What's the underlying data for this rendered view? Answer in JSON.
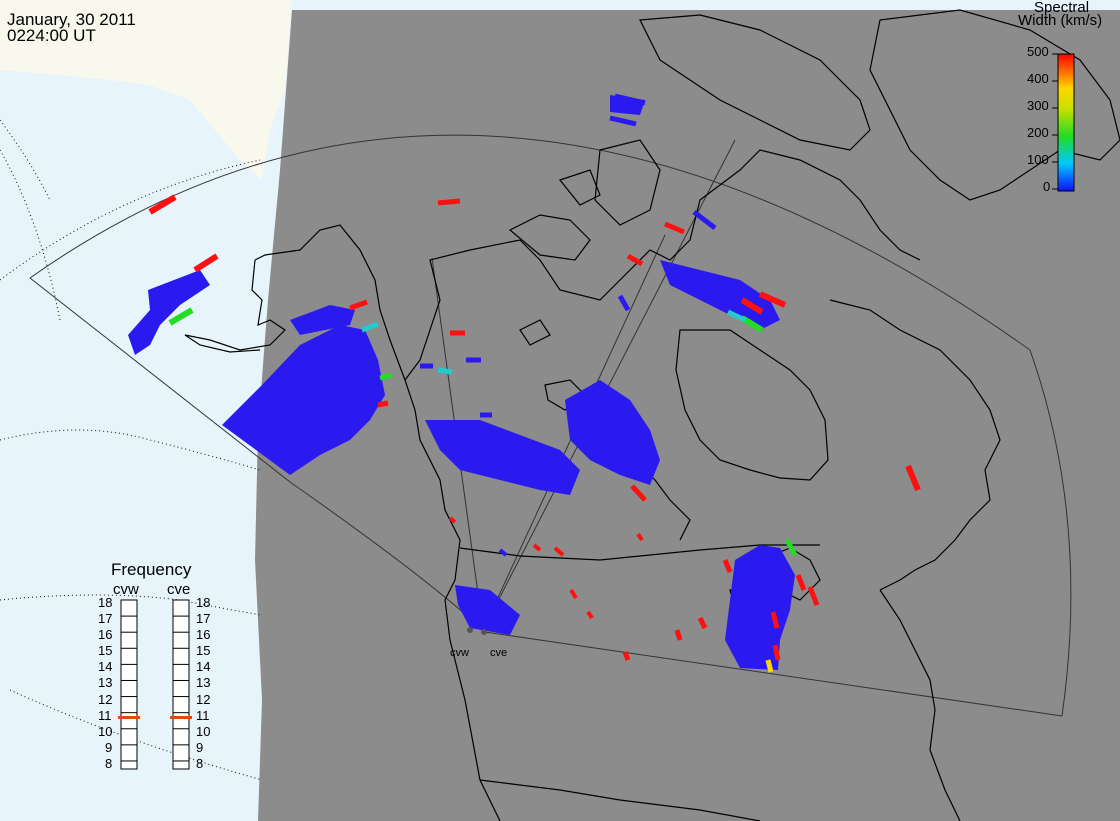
{
  "header": {
    "date": "January, 30 2011",
    "time": "0224:00 UT"
  },
  "colorbar": {
    "title_line1": "Spectral",
    "title_line2": "Width (km/s)",
    "ticks": [
      "500",
      "400",
      "300",
      "200",
      "100",
      "0"
    ],
    "range": [
      0,
      500
    ]
  },
  "frequency": {
    "title": "Frequency",
    "radars": [
      {
        "name": "cvw",
        "value_mhz": 10.7
      },
      {
        "name": "cve",
        "value_mhz": 10.7
      }
    ],
    "scale": [
      "18",
      "17",
      "16",
      "15",
      "14",
      "13",
      "12",
      "11",
      "10",
      "9",
      "8"
    ]
  },
  "sites": {
    "west": "cvw",
    "east": "cve"
  },
  "colors": {
    "background_gray": "#8c8c8c",
    "ocean": "#e8f4fc",
    "land_outside": "#f8f8ec",
    "scatter_blue": "#2a1af0",
    "scatter_red": "#ff1010",
    "scatter_green": "#22dd22",
    "scatter_cyan": "#22cccc",
    "scatter_yellow": "#ffd400",
    "frequency_marker": "#e04a10"
  }
}
